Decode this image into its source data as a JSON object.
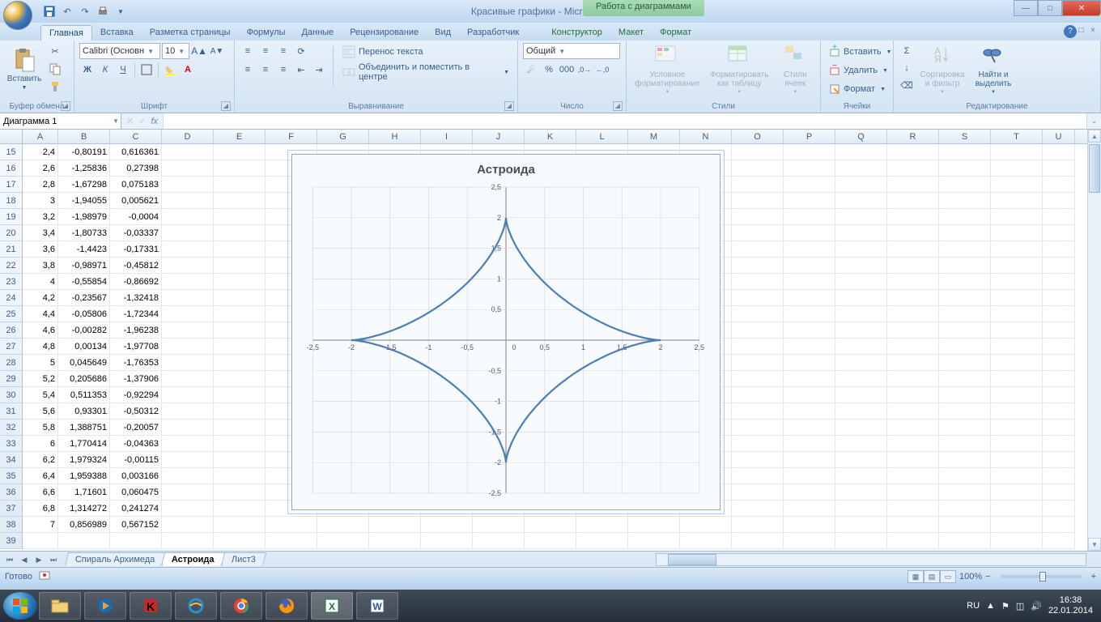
{
  "window": {
    "title": "Красивые графики - Microsoft Excel",
    "contextual_title": "Работа с диаграммами"
  },
  "tabs": {
    "items": [
      "Главная",
      "Вставка",
      "Разметка страницы",
      "Формулы",
      "Данные",
      "Рецензирование",
      "Вид",
      "Разработчик"
    ],
    "contextual": [
      "Конструктор",
      "Макет",
      "Формат"
    ],
    "active": "Главная"
  },
  "ribbon": {
    "clipboard": {
      "label": "Буфер обмена",
      "paste": "Вставить"
    },
    "font": {
      "label": "Шрифт",
      "name": "Calibri (Основн",
      "size": "10",
      "bold": "Ж",
      "italic": "К",
      "underline": "Ч"
    },
    "alignment": {
      "label": "Выравнивание",
      "wrap": "Перенос текста",
      "merge": "Объединить и поместить в центре"
    },
    "number": {
      "label": "Число",
      "format": "Общий"
    },
    "styles": {
      "label": "Стили",
      "cond": "Условное форматирование",
      "table": "Форматировать как таблицу",
      "cell": "Стили ячеек"
    },
    "cells": {
      "label": "Ячейки",
      "insert": "Вставить",
      "delete": "Удалить",
      "format": "Формат"
    },
    "editing": {
      "label": "Редактирование",
      "sort": "Сортировка и фильтр",
      "find": "Найти и выделить"
    }
  },
  "namebox": {
    "value": "Диаграмма 1"
  },
  "columns": {
    "letters": [
      "A",
      "B",
      "C",
      "D",
      "E",
      "F",
      "G",
      "H",
      "I",
      "J",
      "K",
      "L",
      "M",
      "N",
      "O",
      "P",
      "Q",
      "R",
      "S",
      "T",
      "U"
    ],
    "widths": [
      44,
      64,
      64,
      64,
      64,
      64,
      64,
      64,
      64,
      64,
      64,
      64,
      64,
      64,
      64,
      64,
      64,
      64,
      64,
      64,
      40
    ]
  },
  "rows": {
    "start": 15,
    "data": [
      [
        "2,4",
        "-0,80191",
        "0,616361"
      ],
      [
        "2,6",
        "-1,25836",
        "0,27398"
      ],
      [
        "2,8",
        "-1,67298",
        "0,075183"
      ],
      [
        "3",
        "-1,94055",
        "0,005621"
      ],
      [
        "3,2",
        "-1,98979",
        "-0,0004"
      ],
      [
        "3,4",
        "-1,80733",
        "-0,03337"
      ],
      [
        "3,6",
        "-1,4423",
        "-0,17331"
      ],
      [
        "3,8",
        "-0,98971",
        "-0,45812"
      ],
      [
        "4",
        "-0,55854",
        "-0,86692"
      ],
      [
        "4,2",
        "-0,23567",
        "-1,32418"
      ],
      [
        "4,4",
        "-0,05806",
        "-1,72344"
      ],
      [
        "4,6",
        "-0,00282",
        "-1,96238"
      ],
      [
        "4,8",
        "0,00134",
        "-1,97708"
      ],
      [
        "5",
        "0,045649",
        "-1,76353"
      ],
      [
        "5,2",
        "0,205686",
        "-1,37906"
      ],
      [
        "5,4",
        "0,511353",
        "-0,92294"
      ],
      [
        "5,6",
        "0,93301",
        "-0,50312"
      ],
      [
        "5,8",
        "1,388751",
        "-0,20057"
      ],
      [
        "6",
        "1,770414",
        "-0,04363"
      ],
      [
        "6,2",
        "1,979324",
        "-0,00115"
      ],
      [
        "6,4",
        "1,959388",
        "0,003166"
      ],
      [
        "6,6",
        "1,71601",
        "0,060475"
      ],
      [
        "6,8",
        "1,314272",
        "0,241274"
      ],
      [
        "7",
        "0,856989",
        "0,567152"
      ],
      [
        "",
        "",
        ""
      ]
    ]
  },
  "chart": {
    "title": "Астроида",
    "type": "line",
    "xlim": [
      -2.5,
      2.5
    ],
    "ylim": [
      -2.5,
      2.5
    ],
    "xtick_step": 0.5,
    "ytick_step": 0.5,
    "xtick_labels": [
      "-2,5",
      "-2",
      "-1,5",
      "-1",
      "-0,5",
      "0",
      "0,5",
      "1",
      "1,5",
      "2",
      "2,5"
    ],
    "ytick_labels": [
      "-2,5",
      "-2",
      "-1,5",
      "-1",
      "-0,5",
      "0",
      "0,5",
      "1",
      "1,5",
      "2",
      "2,5"
    ],
    "line_color": "#4a7ebb",
    "line_width": 2.2,
    "grid_color": "#d9d9d9",
    "axis_color": "#808080",
    "tick_font_size": 9,
    "tick_color": "#595959",
    "title_fontsize": 15,
    "background_color": "#ffffff",
    "a": 2
  },
  "sheets": {
    "nav": [
      "⏮",
      "◀",
      "▶",
      "⏭"
    ],
    "tabs": [
      "Спираль Архимеда",
      "Астроида",
      "Лист3"
    ],
    "active": "Астроида"
  },
  "statusbar": {
    "ready": "Готово",
    "zoom": "100%",
    "lang": "RU"
  },
  "taskbar": {
    "time": "16:38",
    "date": "22.01.2014"
  }
}
